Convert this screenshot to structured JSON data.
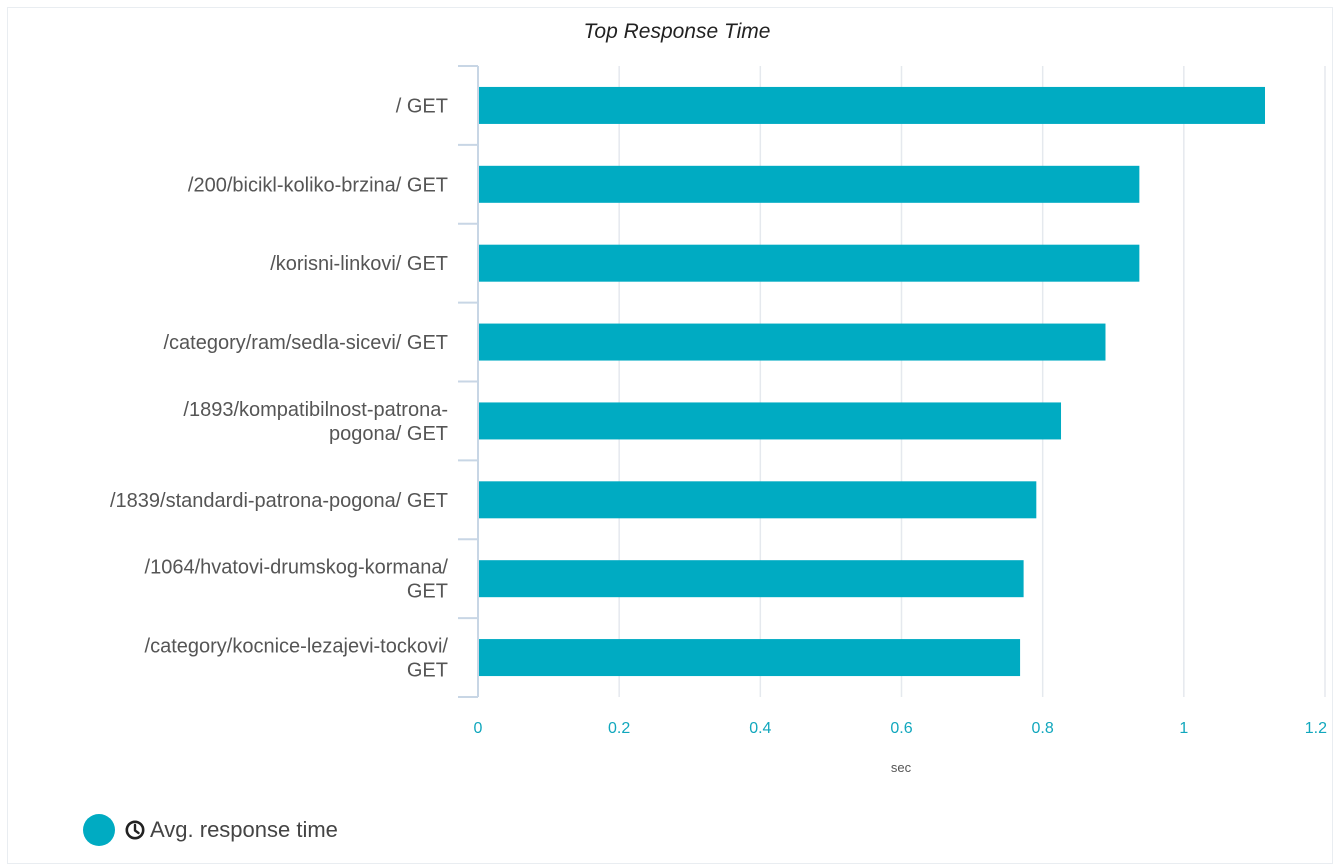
{
  "chart_data": {
    "type": "bar",
    "orientation": "horizontal",
    "title": "Top Response Time",
    "xlabel": "sec",
    "ylabel": "",
    "xlim": [
      0,
      1.2
    ],
    "ticks": [
      "0",
      "0.2",
      "0.4",
      "0.6",
      "0.8",
      "1",
      "1.2"
    ],
    "tick_values": [
      0,
      0.2,
      0.4,
      0.6,
      0.8,
      1.0,
      1.2
    ],
    "categories": [
      [
        "/ GET"
      ],
      [
        "/200/bicikl-koliko-brzina/ GET"
      ],
      [
        "/korisni-linkovi/ GET"
      ],
      [
        "/category/ram/sedla-sicevi/ GET"
      ],
      [
        "/1893/kompatibilnost-patrona-",
        "pogona/ GET"
      ],
      [
        "/1839/standardi-patrona-pogona/ GET"
      ],
      [
        "/1064/hvatovi-drumskog-kormana/",
        "GET"
      ],
      [
        "/category/kocnice-lezajevi-tockovi/",
        "GET"
      ]
    ],
    "series": [
      {
        "name": "Avg. response time",
        "color": "#00abc2",
        "values": [
          1.115,
          0.937,
          0.937,
          0.889,
          0.826,
          0.791,
          0.773,
          0.768
        ]
      }
    ],
    "grid": true,
    "legend_position": "bottom-left"
  },
  "legend": {
    "icon": "clock-icon",
    "label": "Avg. response time"
  },
  "colors": {
    "bar": "#00abc2",
    "grid": "#e5e9ee",
    "axis": "#c8d6e5",
    "tick_text": "#11a7bd",
    "label_text": "#555555"
  }
}
